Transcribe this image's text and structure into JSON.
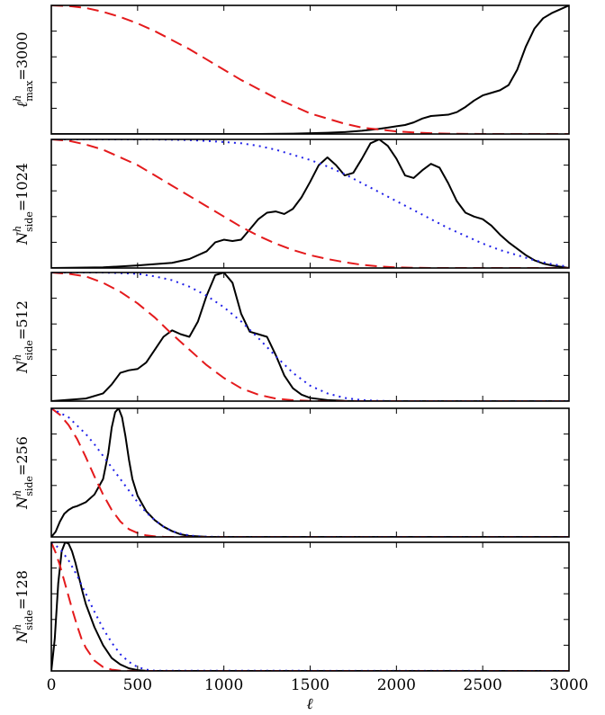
{
  "chart_data": {
    "type": "line",
    "xlabel": "ℓ",
    "xlim": [
      0,
      3000
    ],
    "xticks": [
      "0",
      "500",
      "1000",
      "1500",
      "2000",
      "2500",
      "3000"
    ],
    "colors": {
      "black": "#000000",
      "red": "#e41a1c",
      "blue": "#1f1fe8"
    },
    "panels": [
      {
        "label": {
          "sym": "ℓ",
          "sup": "h",
          "sub": "max",
          "eq": "=3000"
        },
        "ylim": [
          0,
          1
        ],
        "series": [
          {
            "style": "solid",
            "color": "#000000",
            "x": [
              0,
              200,
              500,
              800,
              1000,
              1200,
              1400,
              1600,
              1700,
              1800,
              1900,
              1950,
              2000,
              2050,
              2100,
              2150,
              2200,
              2250,
              2300,
              2350,
              2400,
              2450,
              2500,
              2550,
              2600,
              2650,
              2700,
              2750,
              2800,
              2850,
              2900,
              2950,
              3000
            ],
            "y": [
              0,
              0,
              0,
              0,
              0,
              0,
              0.003,
              0.01,
              0.015,
              0.025,
              0.04,
              0.05,
              0.06,
              0.07,
              0.09,
              0.12,
              0.14,
              0.145,
              0.15,
              0.17,
              0.21,
              0.26,
              0.3,
              0.32,
              0.34,
              0.38,
              0.5,
              0.68,
              0.82,
              0.9,
              0.94,
              0.97,
              1.0
            ]
          },
          {
            "style": "dashed",
            "color": "#e41a1c",
            "x": [
              0,
              100,
              200,
              300,
              400,
              500,
              600,
              700,
              800,
              900,
              1000,
              1100,
              1200,
              1300,
              1400,
              1500,
              1600,
              1700,
              1800,
              1900,
              2000,
              2100,
              2200,
              2300,
              2400,
              2500,
              2700,
              3000
            ],
            "y": [
              1.0,
              0.995,
              0.98,
              0.95,
              0.91,
              0.86,
              0.8,
              0.73,
              0.66,
              0.58,
              0.5,
              0.42,
              0.35,
              0.28,
              0.22,
              0.16,
              0.12,
              0.08,
              0.05,
              0.035,
              0.02,
              0.012,
              0.006,
              0.003,
              0.001,
              0,
              0,
              0
            ]
          }
        ]
      },
      {
        "label": {
          "sym": "N",
          "sup": "h",
          "sub": "side",
          "eq": "=1024"
        },
        "ylim": [
          0,
          1
        ],
        "series": [
          {
            "style": "solid",
            "color": "#000000",
            "x": [
              0,
              300,
              500,
              700,
              800,
              900,
              950,
              1000,
              1050,
              1100,
              1150,
              1200,
              1250,
              1300,
              1350,
              1400,
              1450,
              1500,
              1550,
              1600,
              1650,
              1700,
              1750,
              1800,
              1850,
              1900,
              1950,
              2000,
              2050,
              2100,
              2150,
              2200,
              2250,
              2300,
              2350,
              2400,
              2450,
              2500,
              2550,
              2600,
              2650,
              2700,
              2750,
              2800,
              2850,
              2900,
              3000
            ],
            "y": [
              0,
              0.005,
              0.02,
              0.04,
              0.07,
              0.13,
              0.2,
              0.22,
              0.21,
              0.22,
              0.3,
              0.38,
              0.43,
              0.44,
              0.42,
              0.46,
              0.55,
              0.67,
              0.8,
              0.86,
              0.8,
              0.72,
              0.74,
              0.85,
              0.97,
              1.0,
              0.95,
              0.85,
              0.72,
              0.7,
              0.76,
              0.81,
              0.78,
              0.66,
              0.52,
              0.43,
              0.4,
              0.38,
              0.33,
              0.26,
              0.2,
              0.15,
              0.1,
              0.06,
              0.035,
              0.02,
              0
            ]
          },
          {
            "style": "dashed",
            "color": "#e41a1c",
            "x": [
              0,
              100,
              200,
              300,
              400,
              500,
              600,
              700,
              800,
              900,
              1000,
              1100,
              1200,
              1300,
              1400,
              1500,
              1600,
              1700,
              1800,
              1900,
              2000,
              2100,
              2200,
              2500,
              3000
            ],
            "y": [
              1.0,
              0.99,
              0.96,
              0.92,
              0.86,
              0.8,
              0.72,
              0.64,
              0.56,
              0.48,
              0.4,
              0.32,
              0.25,
              0.19,
              0.14,
              0.1,
              0.07,
              0.045,
              0.025,
              0.012,
              0.005,
              0.002,
              0,
              0,
              0
            ]
          },
          {
            "style": "dotted",
            "color": "#1f1fe8",
            "x": [
              0,
              300,
              600,
              800,
              1000,
              1100,
              1200,
              1300,
              1400,
              1500,
              1600,
              1700,
              1800,
              1900,
              2000,
              2100,
              2200,
              2300,
              2400,
              2500,
              2600,
              2700,
              2800,
              2900,
              3000
            ],
            "y": [
              1.0,
              1.0,
              1.0,
              0.995,
              0.98,
              0.97,
              0.95,
              0.92,
              0.88,
              0.84,
              0.79,
              0.73,
              0.66,
              0.59,
              0.52,
              0.45,
              0.38,
              0.31,
              0.25,
              0.19,
              0.14,
              0.1,
              0.06,
              0.03,
              0.01
            ]
          }
        ]
      },
      {
        "label": {
          "sym": "N",
          "sup": "h",
          "sub": "side",
          "eq": "=512"
        },
        "ylim": [
          0,
          1
        ],
        "series": [
          {
            "style": "solid",
            "color": "#000000",
            "x": [
              0,
              200,
              300,
              350,
              400,
              450,
              500,
              550,
              600,
              650,
              700,
              750,
              800,
              850,
              900,
              950,
              1000,
              1050,
              1100,
              1150,
              1200,
              1250,
              1300,
              1350,
              1400,
              1450,
              1500,
              1600,
              1700,
              1800,
              2000,
              3000
            ],
            "y": [
              0,
              0.02,
              0.06,
              0.13,
              0.22,
              0.24,
              0.25,
              0.3,
              0.4,
              0.5,
              0.55,
              0.52,
              0.5,
              0.62,
              0.82,
              0.98,
              1.0,
              0.92,
              0.68,
              0.54,
              0.52,
              0.5,
              0.36,
              0.2,
              0.1,
              0.05,
              0.025,
              0.008,
              0.002,
              0,
              0,
              0
            ]
          },
          {
            "style": "dashed",
            "color": "#e41a1c",
            "x": [
              0,
              100,
              200,
              300,
              400,
              500,
              600,
              700,
              800,
              900,
              1000,
              1100,
              1200,
              1300,
              1400,
              1500,
              1600,
              3000
            ],
            "y": [
              1.0,
              0.99,
              0.97,
              0.92,
              0.85,
              0.76,
              0.65,
              0.52,
              0.4,
              0.28,
              0.18,
              0.1,
              0.05,
              0.02,
              0.007,
              0.002,
              0,
              0
            ]
          },
          {
            "style": "dotted",
            "color": "#1f1fe8",
            "x": [
              0,
              300,
              500,
              600,
              700,
              800,
              900,
              1000,
              1100,
              1200,
              1300,
              1400,
              1500,
              1600,
              1700,
              1800,
              1900,
              2000,
              3000
            ],
            "y": [
              1.0,
              1.0,
              0.99,
              0.97,
              0.94,
              0.89,
              0.82,
              0.73,
              0.62,
              0.49,
              0.35,
              0.22,
              0.12,
              0.06,
              0.025,
              0.008,
              0.002,
              0,
              0
            ]
          }
        ]
      },
      {
        "label": {
          "sym": "N",
          "sup": "h",
          "sub": "side",
          "eq": "=256"
        },
        "ylim": [
          0,
          1
        ],
        "series": [
          {
            "style": "solid",
            "color": "#000000",
            "x": [
              0,
              25,
              50,
              75,
              100,
              125,
              150,
              200,
              250,
              300,
              330,
              350,
              370,
              390,
              410,
              430,
              450,
              470,
              500,
              550,
              600,
              650,
              700,
              750,
              800,
              900,
              1000,
              3000
            ],
            "y": [
              0,
              0.04,
              0.12,
              0.18,
              0.21,
              0.23,
              0.24,
              0.27,
              0.33,
              0.45,
              0.65,
              0.85,
              0.97,
              1.0,
              0.93,
              0.78,
              0.6,
              0.45,
              0.32,
              0.2,
              0.13,
              0.08,
              0.045,
              0.02,
              0.008,
              0.001,
              0,
              0
            ]
          },
          {
            "style": "dashed",
            "color": "#e41a1c",
            "x": [
              0,
              50,
              100,
              150,
              200,
              250,
              300,
              350,
              400,
              450,
              500,
              550,
              600,
              650,
              700,
              800,
              3000
            ],
            "y": [
              1.0,
              0.95,
              0.87,
              0.76,
              0.62,
              0.47,
              0.33,
              0.21,
              0.12,
              0.06,
              0.03,
              0.012,
              0.004,
              0.001,
              0,
              0,
              0
            ]
          },
          {
            "style": "dotted",
            "color": "#1f1fe8",
            "x": [
              0,
              100,
              200,
              250,
              300,
              350,
              400,
              450,
              500,
              550,
              600,
              650,
              700,
              750,
              800,
              850,
              900,
              1000,
              3000
            ],
            "y": [
              1.0,
              0.93,
              0.8,
              0.72,
              0.63,
              0.54,
              0.45,
              0.36,
              0.27,
              0.19,
              0.13,
              0.08,
              0.045,
              0.025,
              0.012,
              0.005,
              0.002,
              0,
              0
            ]
          }
        ]
      },
      {
        "label": {
          "sym": "N",
          "sup": "h",
          "sub": "side",
          "eq": "=128"
        },
        "ylim": [
          0,
          1
        ],
        "series": [
          {
            "style": "solid",
            "color": "#000000",
            "x": [
              0,
              20,
              40,
              60,
              80,
              100,
              120,
              140,
              160,
              180,
              200,
              250,
              300,
              350,
              400,
              450,
              500,
              550,
              600,
              3000
            ],
            "y": [
              0,
              0.25,
              0.68,
              0.93,
              1.0,
              0.99,
              0.93,
              0.84,
              0.73,
              0.62,
              0.52,
              0.34,
              0.2,
              0.1,
              0.05,
              0.02,
              0.006,
              0.001,
              0,
              0
            ]
          },
          {
            "style": "dashed",
            "color": "#e41a1c",
            "x": [
              0,
              25,
              50,
              75,
              100,
              125,
              150,
              175,
              200,
              250,
              300,
              350,
              400,
              500,
              3000
            ],
            "y": [
              1.0,
              0.92,
              0.82,
              0.7,
              0.58,
              0.46,
              0.35,
              0.25,
              0.18,
              0.08,
              0.03,
              0.01,
              0.002,
              0,
              0
            ]
          },
          {
            "style": "dotted",
            "color": "#1f1fe8",
            "x": [
              0,
              50,
              100,
              150,
              200,
              250,
              300,
              350,
              400,
              450,
              500,
              550,
              600,
              3000
            ],
            "y": [
              1.0,
              0.95,
              0.86,
              0.74,
              0.6,
              0.46,
              0.33,
              0.22,
              0.13,
              0.07,
              0.03,
              0.01,
              0.002,
              0
            ]
          }
        ]
      }
    ]
  }
}
